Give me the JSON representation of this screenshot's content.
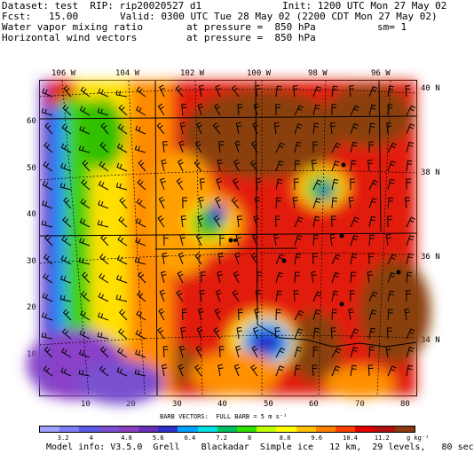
{
  "header": {
    "line1_left": "Dataset: test  RIP: rip20020527 d1",
    "line1_right": "Init: 1200 UTC Mon 27 May 02",
    "line2_left": "Fcst:   15.00",
    "line2_right": "Valid: 0300 UTC Tue 28 May 02 (2200 CDT Mon 27 May 02)",
    "line3_left": "Water vapor mixing ratio",
    "line3_mid": "at pressure =  850 hPa",
    "line3_right": "sm= 1",
    "line4_left": "Horizontal wind vectors",
    "line4_mid": "at pressure =  850 hPa"
  },
  "longitude_labels": [
    "106 W",
    "104 W",
    "102 W",
    "100 W",
    "98 W",
    "96 W"
  ],
  "latitude_labels": [
    "40 N",
    "38 N",
    "36 N",
    "34 N"
  ],
  "y_ticks": [
    "60",
    "50",
    "40",
    "30",
    "20",
    "10"
  ],
  "x_ticks": [
    "10",
    "20",
    "30",
    "40",
    "50",
    "60",
    "70",
    "80"
  ],
  "barb_note": "BARB VECTORS:  FULL BARB = 5 m s⁻¹",
  "colorbar": {
    "labels": [
      "3.2",
      "4",
      "4.8",
      "5.6",
      "6.4",
      "7.2",
      "8",
      "8.8",
      "9.6",
      "10.4",
      "11.2"
    ],
    "units": "g kg⁻¹",
    "colors": [
      "#9fa0ff",
      "#7b7cf6",
      "#5a5ae6",
      "#7b4fcf",
      "#8a3fc0",
      "#6a2fb8",
      "#3030c8",
      "#00a0ff",
      "#00e0e0",
      "#00c060",
      "#30e000",
      "#c0ff00",
      "#ffff00",
      "#ffc000",
      "#ff8000",
      "#ff4000",
      "#e00000",
      "#b01010",
      "#8a3a10"
    ]
  },
  "footer": "Model info: V3.5.0  Grell    Blackadar  Simple ice   12 km,  29 levels,   80 sec"
}
